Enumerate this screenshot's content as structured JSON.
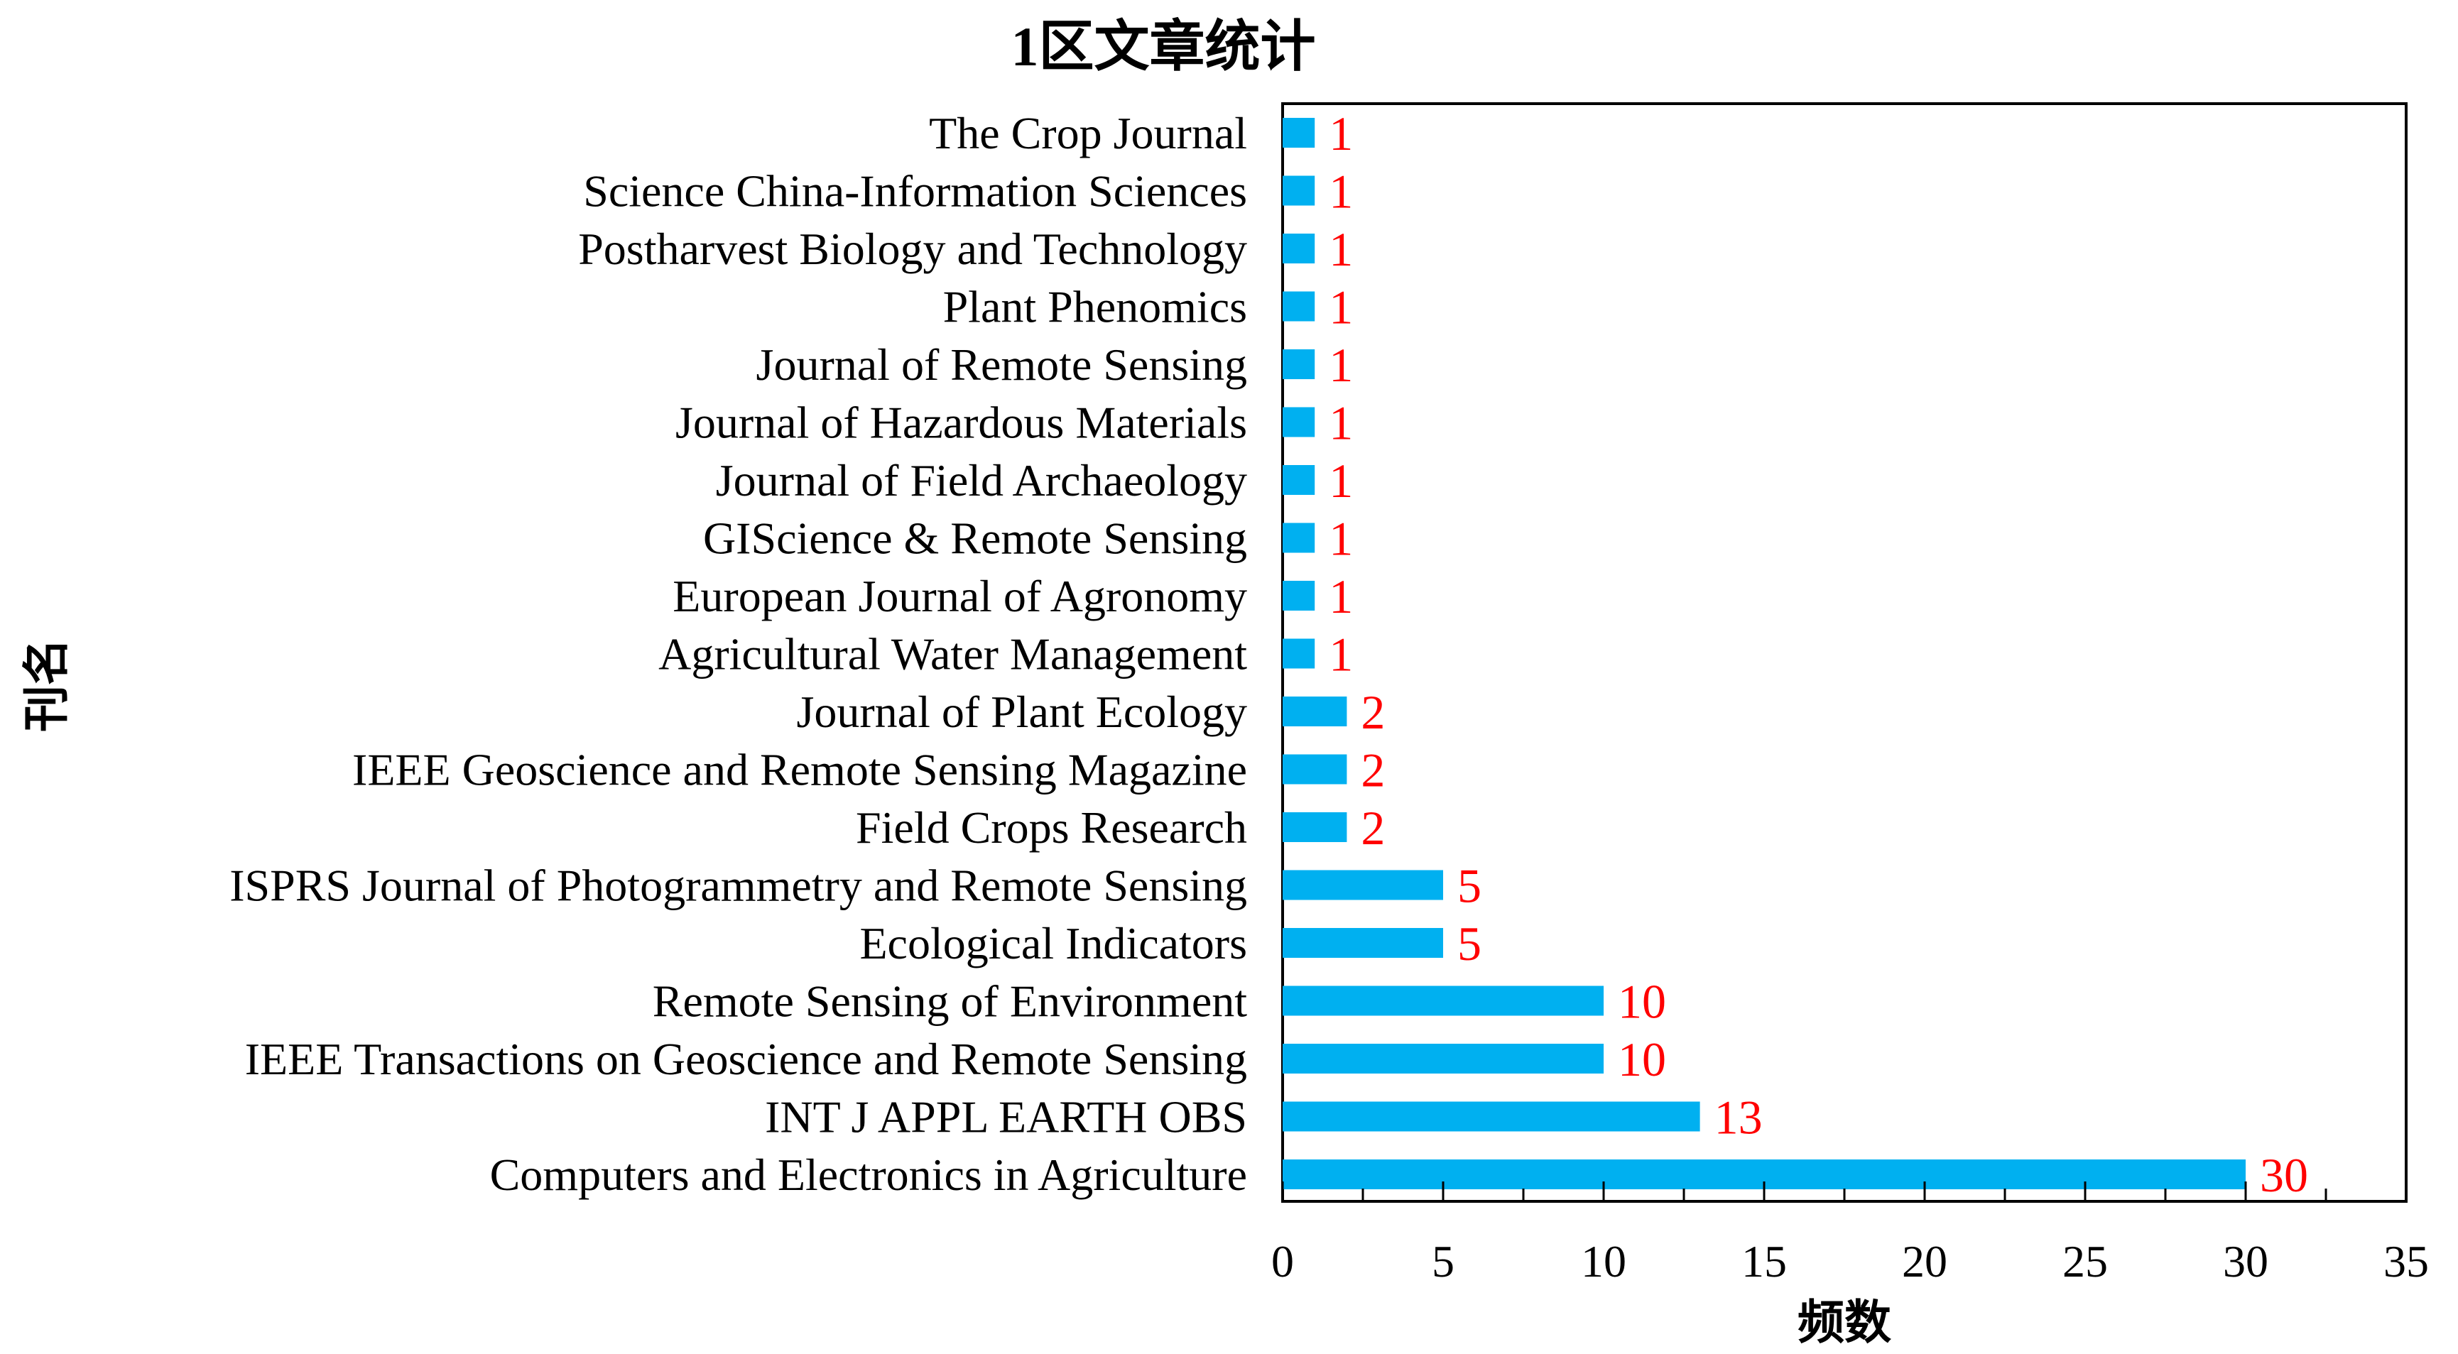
{
  "chart_data": {
    "type": "bar",
    "orientation": "horizontal",
    "title": "1区文章统计",
    "xlabel": "频数",
    "ylabel": "刊名",
    "xlim": [
      0,
      35
    ],
    "x_ticks": [
      "0",
      "5",
      "10",
      "15",
      "20",
      "25",
      "30",
      "35"
    ],
    "grid": false,
    "legend": "none",
    "bar_color": "#00b0f0",
    "label_color": "#ff0000",
    "categories": [
      "The Crop Journal",
      "Science China-Information Sciences",
      "Postharvest Biology and Technology",
      "Plant Phenomics",
      "Journal of Remote Sensing",
      "Journal of Hazardous Materials",
      "Journal of Field Archaeology",
      "GIScience & Remote Sensing",
      "European Journal of Agronomy",
      "Agricultural Water Management",
      "Journal of Plant Ecology",
      "IEEE Geoscience and Remote Sensing Magazine",
      "Field Crops Research",
      "ISPRS Journal of Photogrammetry and Remote Sensing",
      "Ecological Indicators",
      "Remote Sensing of Environment",
      "IEEE Transactions on Geoscience and Remote Sensing",
      "INT J APPL EARTH OBS",
      "Computers and Electronics in Agriculture"
    ],
    "values": [
      1,
      1,
      1,
      1,
      1,
      1,
      1,
      1,
      1,
      1,
      2,
      2,
      2,
      5,
      5,
      10,
      10,
      13,
      30
    ]
  }
}
